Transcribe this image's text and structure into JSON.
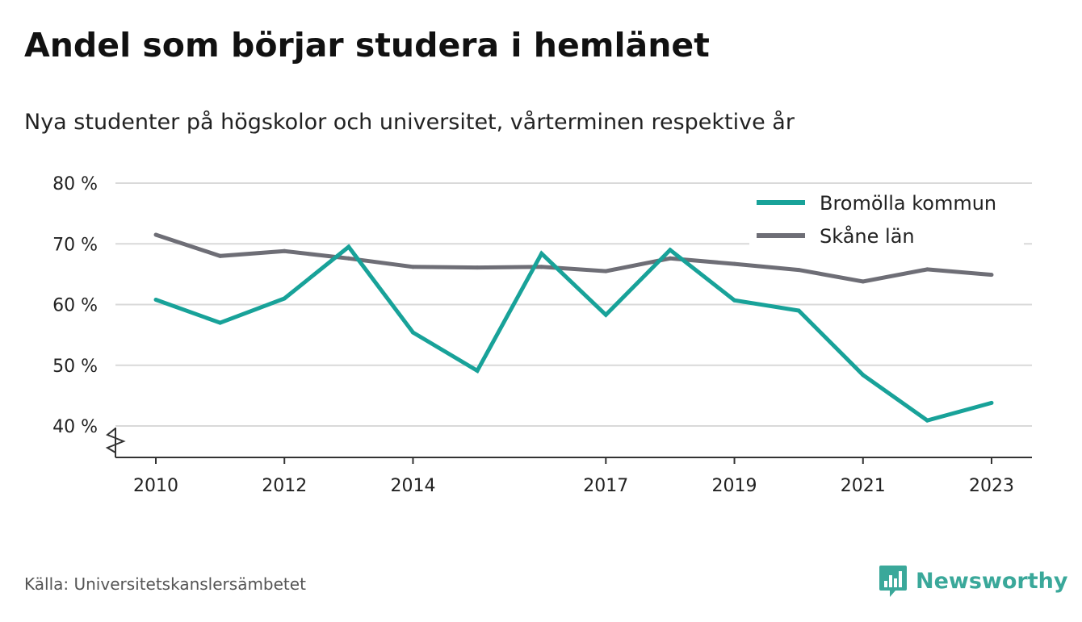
{
  "header": {
    "title": "Andel som börjar studera i hemlänet",
    "subtitle": "Nya studenter på högskolor och universitet, vårterminen respektive år"
  },
  "footer": {
    "source": "Källa: Universitetskanslersämbetet",
    "brand": "Newsworthy"
  },
  "colors": {
    "bromolla": "#18a299",
    "skane": "#6e6e76",
    "grid": "#d9d9d9",
    "axis": "#333333",
    "brand": "#3aa89a"
  },
  "icons": {
    "brand_logo": "bar-chart-speech-bubble-icon",
    "axis_break": "zigzag-axis-break-icon"
  },
  "chart_data": {
    "type": "line",
    "x": [
      2010,
      2011,
      2012,
      2013,
      2014,
      2015,
      2016,
      2017,
      2018,
      2019,
      2020,
      2021,
      2022,
      2023
    ],
    "x_tick_labels": [
      "2010",
      "2012",
      "2014",
      "2017",
      "2019",
      "2021",
      "2023"
    ],
    "y_ticks": [
      40,
      50,
      60,
      70,
      80
    ],
    "y_tick_labels": [
      "40 %",
      "50 %",
      "60 %",
      "70 %",
      "80 %"
    ],
    "ylim": [
      35,
      80
    ],
    "xlim": [
      2009.4,
      2023.7
    ],
    "y_axis_break": true,
    "grid": "horizontal",
    "legend_position": "top-right",
    "series": [
      {
        "name": "Bromölla kommun",
        "color": "#18a299",
        "values": [
          60.8,
          57.0,
          61.0,
          69.5,
          55.4,
          49.1,
          68.4,
          58.3,
          69.0,
          60.7,
          59.0,
          48.4,
          40.9,
          43.8
        ]
      },
      {
        "name": "Skåne län",
        "color": "#6e6e76",
        "values": [
          71.5,
          68.0,
          68.8,
          67.6,
          66.2,
          66.1,
          66.2,
          65.5,
          67.6,
          66.7,
          65.7,
          63.8,
          65.8,
          64.9
        ]
      }
    ]
  }
}
